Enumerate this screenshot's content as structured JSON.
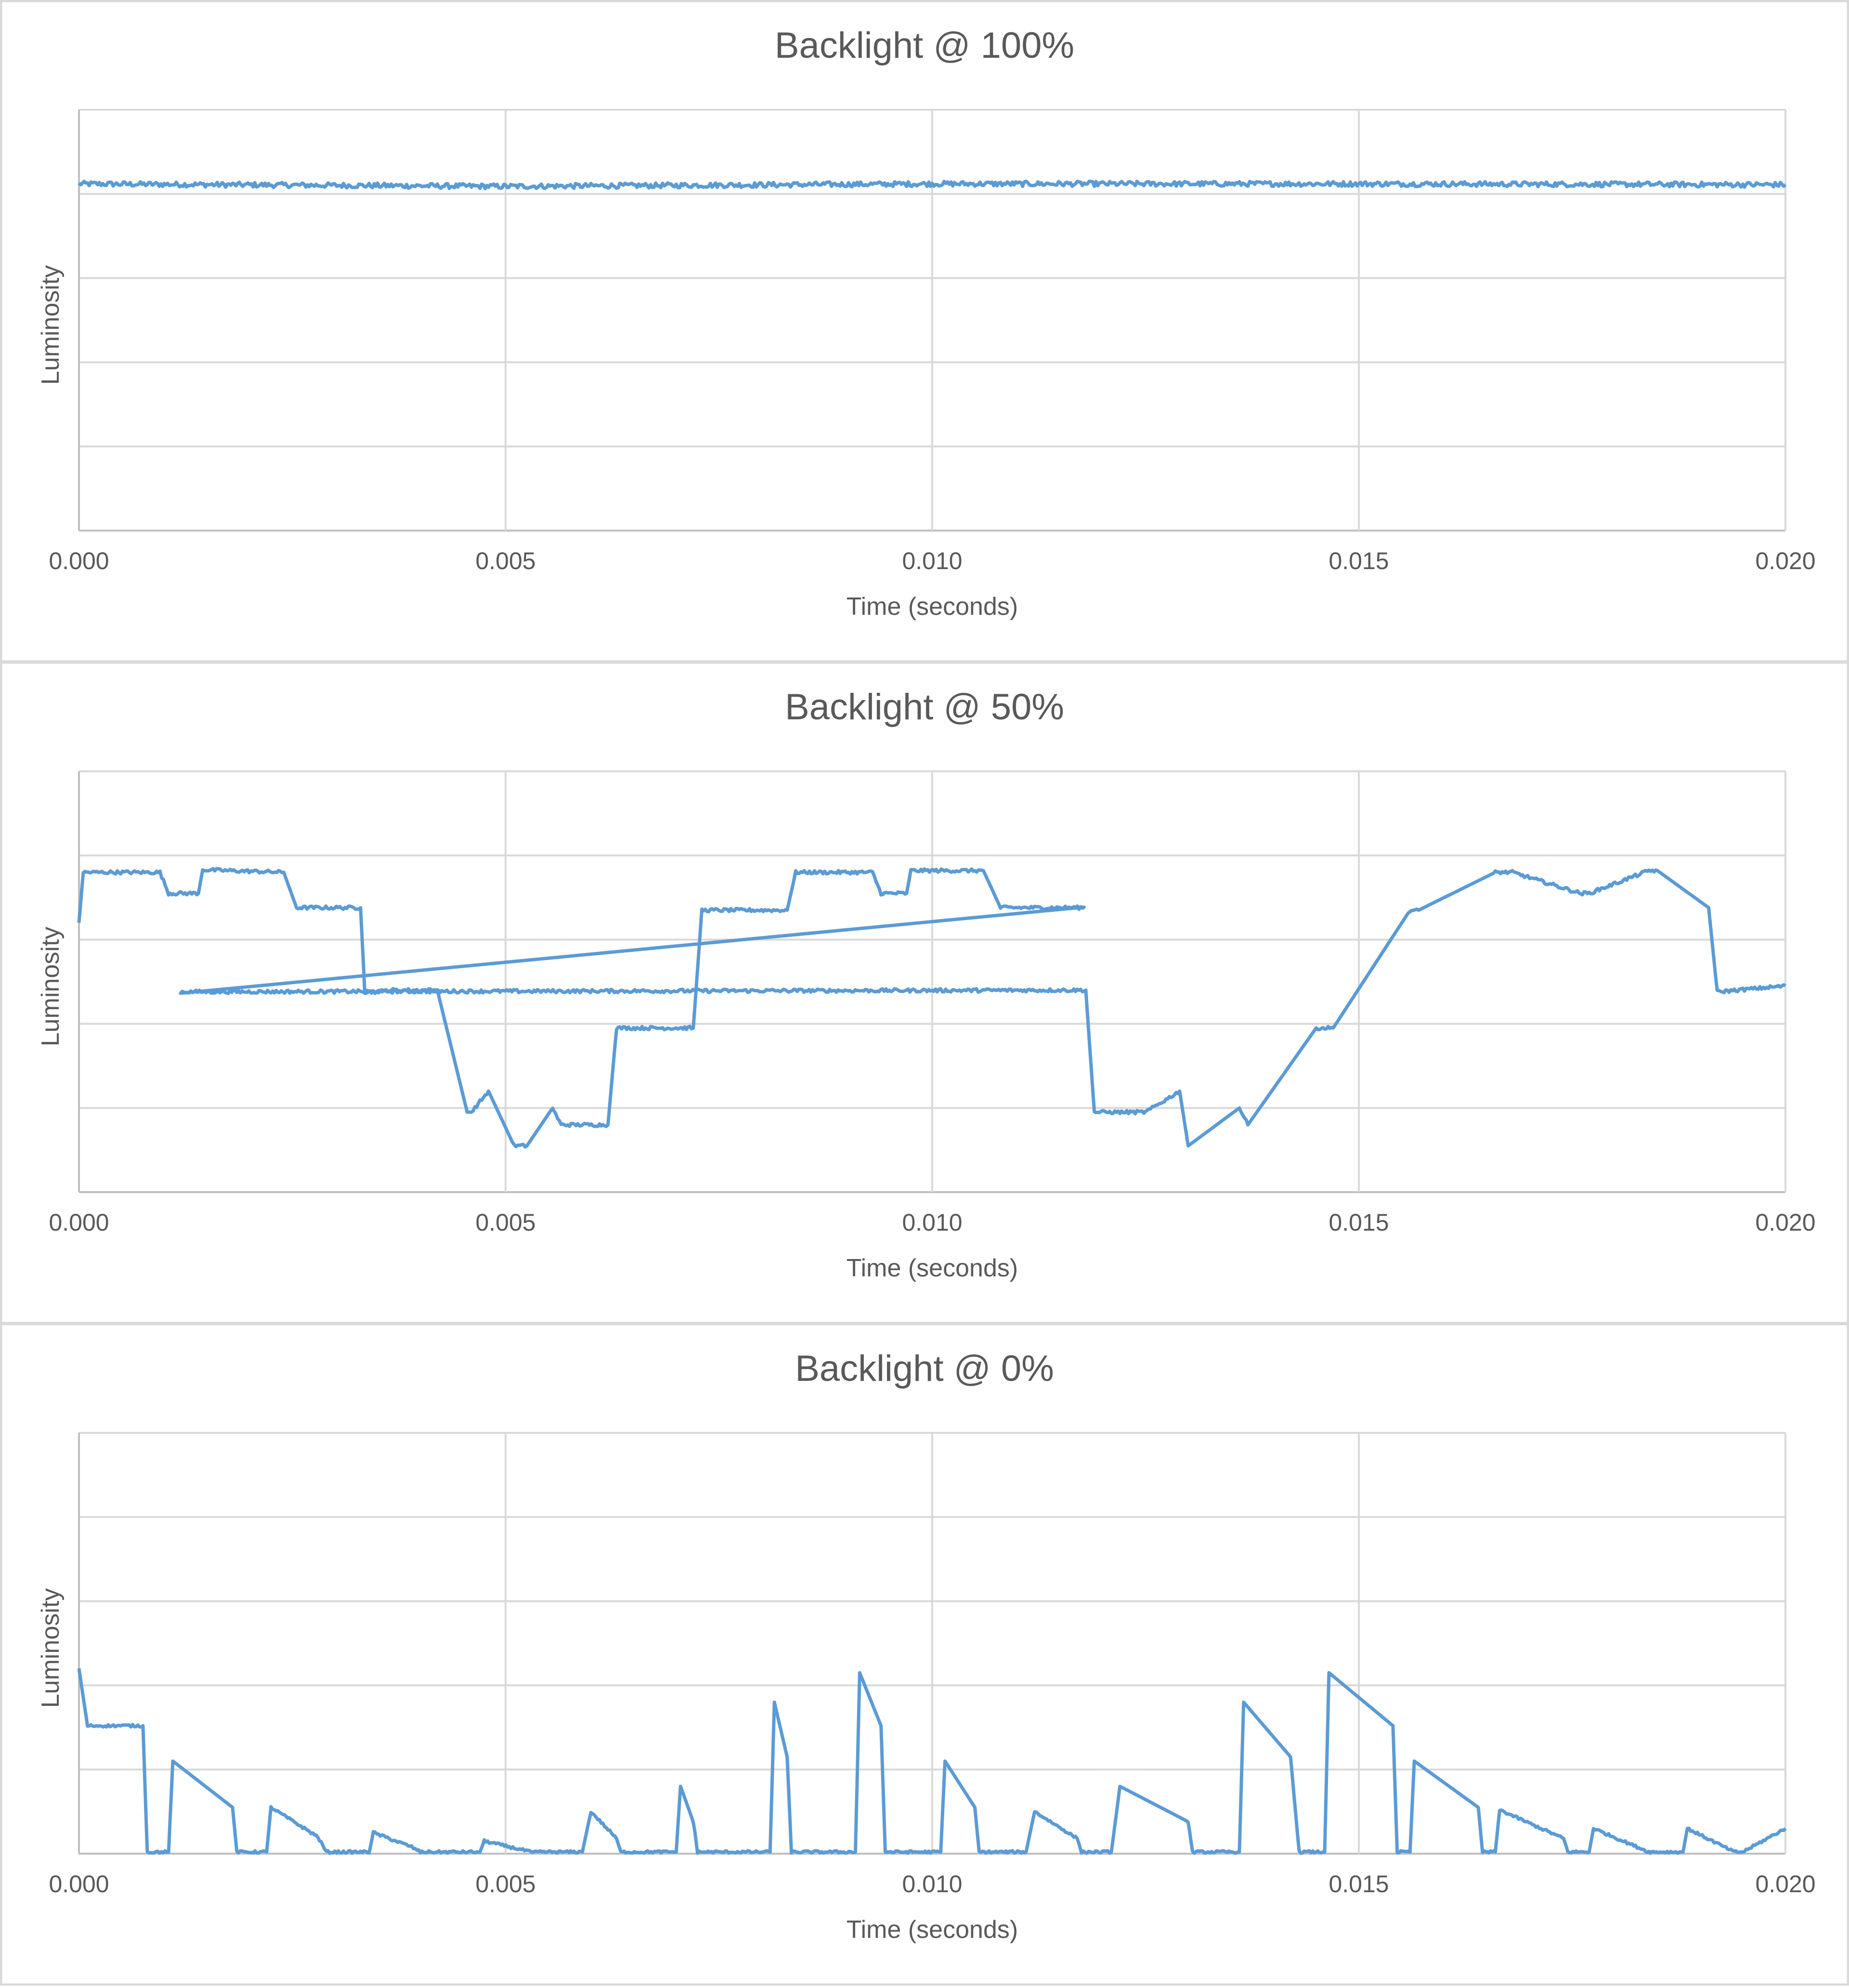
{
  "colors": {
    "line": "#5b9bd5",
    "grid": "#d9d9d9",
    "axis": "#bfbfbf",
    "title": "#595959",
    "tick": "#595959",
    "panel_border": "#d9d9d9"
  },
  "chart_data": [
    {
      "type": "line",
      "title": "Backlight @ 100%",
      "xlabel": "Time (seconds)",
      "ylabel": "Luminosity",
      "xlim": [
        0,
        0.02
      ],
      "ylim": [
        0,
        5
      ],
      "x_ticks": [
        "0.000",
        "0.005",
        "0.010",
        "0.015",
        "0.020"
      ],
      "y_tick_labels_shown": false,
      "grid": true,
      "legend": "none",
      "series": [
        {
          "x": [
            0,
            0.005,
            0.01,
            0.015,
            0.02
          ],
          "y": [
            4.12,
            4.09,
            4.12,
            4.12,
            4.11
          ],
          "noise": 0.03
        }
      ]
    },
    {
      "type": "line",
      "title": "Backlight @ 50%",
      "xlabel": "Time (seconds)",
      "ylabel": "Luminosity",
      "xlim": [
        0,
        0.02
      ],
      "ylim": [
        0,
        5
      ],
      "x_ticks": [
        "0.000",
        "0.005",
        "0.010",
        "0.015",
        "0.020"
      ],
      "y_tick_labels_shown": false,
      "grid": true,
      "legend": "none",
      "series": [
        {
          "x": [
            0,
            5e-05,
            0.00095,
            0.00105,
            0.0014,
            0.00145,
            0.0024,
            0.00255,
            0.0033,
            0.00335,
            0.00355,
            0.0036,
            0.0042,
            0.00455,
            0.0046,
            0.0048,
            0.0051,
            0.00525,
            0.00555,
            0.00565,
            0.0062,
            0.0063,
            0.0072,
            0.0073,
            0.0083,
            0.0084,
            0.0093,
            0.0094,
            0.0097,
            0.00975,
            0.0106,
            0.0108,
            0.0118,
            0.00119,
            0.0118,
            0.0119,
            0.0125,
            0.0129,
            0.013,
            0.0136,
            0.0137,
            0.0145,
            0.0147,
            0.0156,
            0.0157,
            0.0166,
            0.0168,
            0.0176,
            0.0177,
            0.0184,
            0.0185,
            0.0191,
            0.0192,
            0.02
          ],
          "y": [
            3.2,
            3.8,
            3.8,
            3.55,
            3.55,
            3.83,
            3.8,
            3.38,
            3.38,
            2.38,
            2.38,
            2.4,
            2.4,
            0.95,
            0.95,
            1.2,
            0.55,
            0.55,
            1.0,
            0.8,
            0.8,
            1.95,
            1.95,
            3.35,
            3.35,
            3.8,
            3.8,
            3.55,
            3.55,
            3.82,
            3.82,
            3.38,
            3.38,
            2.38,
            2.4,
            0.95,
            0.95,
            1.2,
            0.55,
            1.0,
            0.8,
            1.95,
            1.95,
            3.35,
            3.35,
            3.8,
            3.8,
            3.55,
            3.55,
            3.82,
            3.82,
            3.38,
            2.38,
            2.45
          ],
          "noise": 0.02
        }
      ]
    },
    {
      "type": "line",
      "title": "Backlight @ 0%",
      "xlabel": "Time (seconds)",
      "ylabel": "Luminosity",
      "xlim": [
        0,
        0.02
      ],
      "ylim": [
        0,
        5
      ],
      "x_ticks": [
        "0.000",
        "0.005",
        "0.010",
        "0.015",
        "0.020"
      ],
      "y_tick_labels_shown": false,
      "grid": true,
      "legend": "none",
      "series": [
        {
          "x": [
            0,
            0.0001,
            0.00075,
            0.0008,
            0.00105,
            0.0011,
            0.0018,
            0.00185,
            0.0022,
            0.00225,
            0.0028,
            0.0029,
            0.0034,
            0.00345,
            0.0039,
            0.004,
            0.0047,
            0.00475,
            0.0053,
            0.00535,
            0.0059,
            0.006,
            0.0063,
            0.00635,
            0.007,
            0.00705,
            0.0072,
            0.00725,
            0.0081,
            0.00815,
            0.0083,
            0.00835,
            0.0091,
            0.00915,
            0.0094,
            0.00945,
            0.0101,
            0.01015,
            0.0105,
            0.01055,
            0.0111,
            0.0112,
            0.0117,
            0.01175,
            0.0121,
            0.0122,
            0.013,
            0.01305,
            0.0136,
            0.01365,
            0.0142,
            0.0143,
            0.0146,
            0.01465,
            0.0154,
            0.01545,
            0.0156,
            0.01565,
            0.0164,
            0.01645,
            0.0166,
            0.01665,
            0.0174,
            0.01745,
            0.0177,
            0.01775,
            0.0184,
            0.01845,
            0.0188,
            0.01885,
            0.0194,
            0.0195,
            0.02
          ],
          "y": [
            2.2,
            1.52,
            1.52,
            0.02,
            0.02,
            1.1,
            0.55,
            0.02,
            0.02,
            0.55,
            0.2,
            0.02,
            0.02,
            0.25,
            0.08,
            0.02,
            0.02,
            0.15,
            0.02,
            0.02,
            0.02,
            0.5,
            0.18,
            0.02,
            0.02,
            0.8,
            0.38,
            0.02,
            0.02,
            1.8,
            1.15,
            0.02,
            0.02,
            2.15,
            1.52,
            0.02,
            0.02,
            1.1,
            0.55,
            0.02,
            0.02,
            0.5,
            0.18,
            0.02,
            0.02,
            0.8,
            0.38,
            0.02,
            0.02,
            1.8,
            1.15,
            0.02,
            0.02,
            2.15,
            1.52,
            0.02,
            0.02,
            1.1,
            0.55,
            0.02,
            0.02,
            0.52,
            0.18,
            0.02,
            0.02,
            0.3,
            0.02,
            0.02,
            0.02,
            0.3,
            0.02,
            0.02,
            0.3
          ],
          "noise": 0.015
        }
      ]
    }
  ]
}
